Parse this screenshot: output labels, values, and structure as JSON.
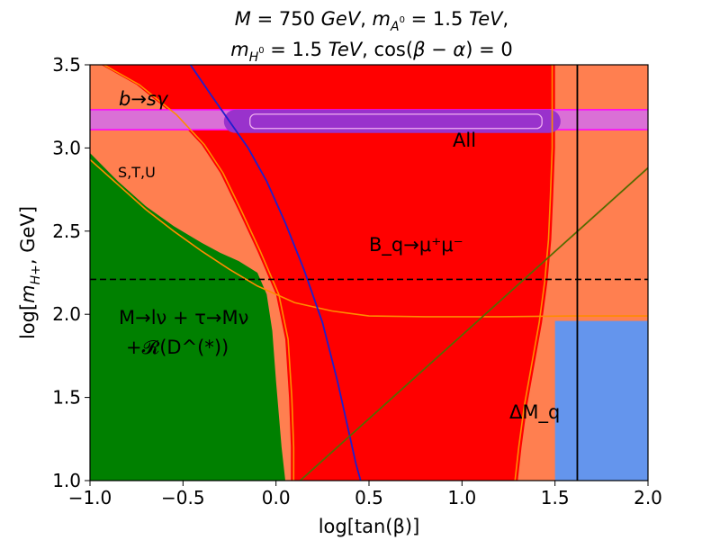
{
  "chart_data": {
    "type": "area",
    "title_line1": "M = 750 GeV,  m_{A^0} = 1.5 TeV,",
    "title_line2": "m_{H^0} = 1.5 TeV,  cos(β − α) = 0",
    "xlabel": "log[tan(β)]",
    "ylabel": "log[m_{H+}, GeV]",
    "xlim": [
      -1.0,
      2.0
    ],
    "ylim": [
      1.0,
      3.5
    ],
    "xticks": [
      "−1.0",
      "−0.5",
      "0.0",
      "0.5",
      "1.0",
      "1.5",
      "2.0"
    ],
    "xtick_values": [
      -1.0,
      -0.5,
      0.0,
      0.5,
      1.0,
      1.5,
      2.0
    ],
    "yticks": [
      "1.0",
      "1.5",
      "2.0",
      "2.5",
      "3.0",
      "3.5"
    ],
    "ytick_values": [
      1.0,
      1.5,
      2.0,
      2.5,
      3.0,
      3.5
    ],
    "grid": false,
    "colors": {
      "stu": "#ff7f50",
      "bq": "#ff0000",
      "leptonic": "#008000",
      "deltam": "#6495ed",
      "bsgamma": "#da70d6",
      "all": "#9932cc",
      "contour_orange": "#ff8c00",
      "contour_blue": "#1f1fcc",
      "contour_olive": "#556b00"
    },
    "regions": {
      "stu_background": {
        "x": [
          -1.0,
          2.0
        ],
        "y": [
          1.0,
          3.5
        ]
      },
      "deltam_q": {
        "x": [
          1.5,
          2.0
        ],
        "y": [
          1.0,
          1.96
        ]
      },
      "leptonic_boundary": {
        "x": [
          -1.0,
          -0.85,
          -0.7,
          -0.55,
          -0.4,
          -0.3,
          -0.2,
          -0.1,
          -0.05,
          -0.02,
          0.0,
          0.03,
          0.05
        ],
        "y": [
          2.97,
          2.8,
          2.65,
          2.53,
          2.43,
          2.37,
          2.32,
          2.25,
          2.12,
          1.9,
          1.6,
          1.2,
          1.0
        ]
      },
      "bq_left_boundary": {
        "x": [
          -0.94,
          -0.75,
          -0.55,
          -0.4,
          -0.3,
          -0.2,
          -0.1,
          0.0,
          0.05,
          0.07,
          0.08,
          0.08
        ],
        "y": [
          3.5,
          3.38,
          3.2,
          3.02,
          2.85,
          2.62,
          2.38,
          2.12,
          1.85,
          1.5,
          1.2,
          1.0
        ]
      },
      "bq_right_boundary": {
        "x": [
          1.5,
          1.5,
          1.49,
          1.48,
          1.46,
          1.43,
          1.39,
          1.35,
          1.32,
          1.3
        ],
        "y": [
          3.5,
          3.0,
          2.7,
          2.45,
          2.2,
          1.95,
          1.7,
          1.45,
          1.2,
          1.0
        ]
      },
      "bsgamma_band": {
        "x": [
          -1.0,
          2.0
        ],
        "y": [
          3.11,
          3.23
        ]
      },
      "all_region": {
        "x": [
          -0.28,
          1.53
        ],
        "y": [
          3.09,
          3.23
        ]
      }
    },
    "contours": {
      "blue": {
        "x": [
          -0.46,
          -0.35,
          -0.25,
          -0.15,
          -0.05,
          0.05,
          0.15,
          0.25,
          0.33,
          0.39,
          0.43,
          0.45,
          0.455
        ],
        "y": [
          3.5,
          3.32,
          3.16,
          3.0,
          2.8,
          2.55,
          2.27,
          1.95,
          1.6,
          1.3,
          1.1,
          1.02,
          1.0
        ]
      },
      "olive": {
        "x": [
          0.13,
          2.0
        ],
        "y": [
          1.0,
          2.88
        ]
      },
      "orange_stu": {
        "x": [
          -1.0,
          -0.85,
          -0.7,
          -0.55,
          -0.4,
          -0.25,
          -0.1,
          0.1,
          0.3,
          0.5,
          0.8,
          1.2,
          1.6,
          2.0
        ],
        "y": [
          2.93,
          2.78,
          2.63,
          2.5,
          2.38,
          2.27,
          2.17,
          2.07,
          2.02,
          1.99,
          1.985,
          1.985,
          1.99,
          1.99
        ]
      }
    },
    "reference_lines": {
      "horizontal_dashed_y": 2.21,
      "vertical_solid_x": 1.62
    },
    "annotations": {
      "bsgamma": "b→sγ",
      "all": "All",
      "stu": "S,T,U",
      "bq": "B_q→μ⁺μ⁻",
      "leptonic_line1": "M→lν + τ→Mν",
      "leptonic_line2": "+𝓡(D^(*))",
      "deltam": "ΔM_q"
    }
  }
}
